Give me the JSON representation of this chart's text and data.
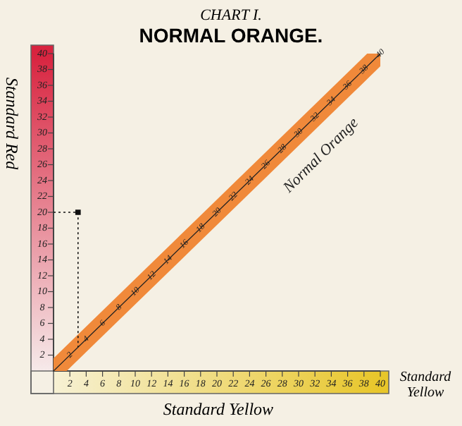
{
  "chart_data": {
    "type": "line",
    "title": "NORMAL ORANGE.",
    "subtitle": "CHART I.",
    "xlabel": "Standard Yellow",
    "ylabel": "Standard Red",
    "annotations": [
      "Standard Yellow"
    ],
    "xlim": [
      0,
      40
    ],
    "ylim": [
      0,
      40
    ],
    "xticks": [
      2,
      4,
      6,
      8,
      10,
      12,
      14,
      16,
      18,
      20,
      22,
      24,
      26,
      28,
      30,
      32,
      34,
      36,
      38,
      40
    ],
    "yticks": [
      2,
      4,
      6,
      8,
      10,
      12,
      14,
      16,
      18,
      20,
      22,
      24,
      26,
      28,
      30,
      32,
      34,
      36,
      38,
      40
    ],
    "grid": false,
    "legend": false,
    "marker": "none",
    "series": [
      {
        "name": "Normal Orange",
        "color": "#f0893a",
        "x": [
          0,
          2,
          4,
          6,
          8,
          10,
          12,
          14,
          16,
          18,
          20,
          22,
          24,
          26,
          28,
          30,
          32,
          34,
          36,
          38,
          40
        ],
        "values": [
          0,
          2,
          4,
          6,
          8,
          10,
          12,
          14,
          16,
          18,
          20,
          22,
          24,
          26,
          28,
          30,
          32,
          34,
          36,
          38,
          40
        ],
        "value_labels": [
          null,
          "2",
          "4",
          "6",
          "8",
          "10",
          "12",
          "14",
          "16",
          "18",
          "20",
          "22",
          "24",
          "26",
          "28",
          "30",
          "32",
          "34",
          "36",
          "38",
          "40"
        ]
      },
      {
        "type": "scatter",
        "color": "#111111",
        "x": [
          3
        ],
        "values": [
          20
        ],
        "marker": "square",
        "line_style": "dotted"
      }
    ]
  }
}
